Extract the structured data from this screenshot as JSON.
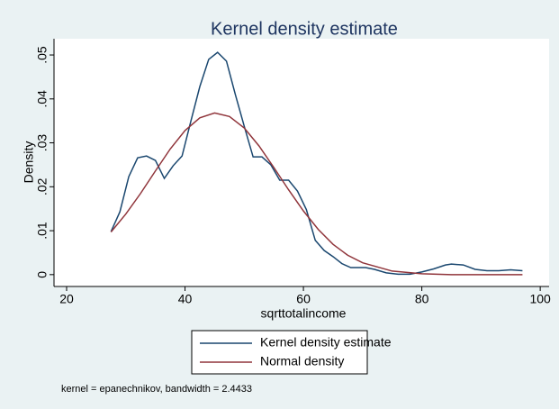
{
  "chart_data": {
    "type": "line",
    "title": "Kernel density estimate",
    "x_label": "sqrttotalincome",
    "y_label": "Density",
    "note": "kernel = epanechnikov, bandwidth = 2.4433",
    "xlim": [
      17.87,
      101.5
    ],
    "ylim": [
      -0.0027,
      0.0537
    ],
    "xticks": [
      20,
      40,
      60,
      80,
      100
    ],
    "yticks": [
      0,
      {
        "value": 0.01,
        "label": ".01"
      },
      {
        "value": 0.02,
        "label": ".02"
      },
      {
        "value": 0.03,
        "label": ".03"
      },
      {
        "value": 0.04,
        "label": ".04"
      },
      {
        "value": 0.05,
        "label": ".05"
      }
    ],
    "legend": "bottom",
    "series": [
      {
        "name": "Kernel density estimate",
        "color": "#1a476f",
        "x": [
          27.5,
          29,
          30.5,
          32,
          33.5,
          35,
          36.5,
          38,
          39.5,
          41,
          42.5,
          44,
          45.5,
          47,
          48.5,
          50,
          51.5,
          53,
          54.5,
          56,
          57.5,
          59,
          60.5,
          62,
          63.5,
          65,
          66.5,
          68,
          70.5,
          72,
          74,
          76,
          78,
          80,
          82,
          84,
          85,
          87,
          89,
          91,
          93,
          95,
          97
        ],
        "values": [
          0.0098,
          0.0143,
          0.0223,
          0.0266,
          0.027,
          0.026,
          0.0219,
          0.0248,
          0.027,
          0.035,
          0.0428,
          0.049,
          0.0506,
          0.0486,
          0.041,
          0.0338,
          0.0268,
          0.0268,
          0.025,
          0.0215,
          0.0215,
          0.019,
          0.0148,
          0.0078,
          0.0055,
          0.0041,
          0.0025,
          0.0016,
          0.0016,
          0.0012,
          0.0004,
          0.0001,
          0.0001,
          0.0006,
          0.0013,
          0.0022,
          0.0024,
          0.0022,
          0.0012,
          0.0009,
          0.0009,
          0.0011,
          0.0009
        ]
      },
      {
        "name": "Normal density",
        "color": "#90353b",
        "x": [
          27.5,
          30,
          32.5,
          35,
          37.5,
          40,
          42.5,
          45,
          47.5,
          50,
          52.5,
          55,
          57.5,
          60,
          62.5,
          65,
          67.5,
          70,
          75,
          80,
          85,
          90,
          97
        ],
        "values": [
          0.0097,
          0.0138,
          0.0185,
          0.0236,
          0.0286,
          0.0328,
          0.0357,
          0.0368,
          0.036,
          0.0334,
          0.0293,
          0.0244,
          0.0193,
          0.0145,
          0.0103,
          0.0069,
          0.0044,
          0.0027,
          0.0008,
          0.0002,
          0,
          0,
          0
        ]
      }
    ]
  }
}
